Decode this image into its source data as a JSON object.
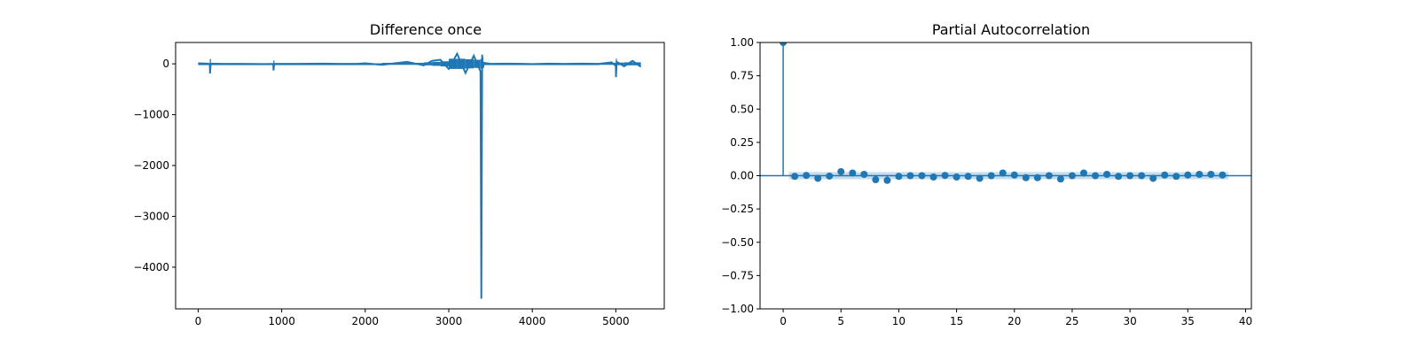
{
  "chart_data": [
    {
      "type": "line",
      "title": "Difference once",
      "xlabel": "",
      "ylabel": "",
      "xlim": [
        -270,
        5580
      ],
      "ylim": [
        -4820,
        420
      ],
      "xticks": [
        0,
        1000,
        2000,
        3000,
        4000,
        5000
      ],
      "xtick_labels": [
        "0",
        "1000",
        "2000",
        "3000",
        "4000",
        "5000"
      ],
      "yticks": [
        0,
        -1000,
        -2000,
        -3000,
        -4000
      ],
      "ytick_labels": [
        "0",
        "−1000",
        "−2000",
        "−3000",
        "−4000"
      ],
      "grid": false,
      "series_color": "#1f77b4",
      "series": [
        {
          "x": [
            0,
            100,
            140,
            142,
            150,
            300,
            500,
            800,
            900,
            902,
            910,
            1200,
            1500,
            1700,
            1900,
            2000,
            2200,
            2500,
            2700,
            2800,
            2900,
            3000,
            3100,
            3200,
            3300,
            3380,
            3390,
            3400,
            3410,
            3420,
            3500,
            3700,
            3900,
            4000,
            4200,
            4400,
            4600,
            4800,
            4950,
            5000,
            5002,
            5010,
            5100,
            5200,
            5300
          ],
          "y": [
            10,
            5,
            0,
            -190,
            5,
            0,
            0,
            -5,
            0,
            -130,
            0,
            0,
            5,
            0,
            0,
            10,
            -20,
            40,
            -30,
            60,
            80,
            -100,
            200,
            -180,
            160,
            -150,
            -4620,
            180,
            -80,
            20,
            0,
            5,
            0,
            -5,
            5,
            0,
            5,
            0,
            30,
            -40,
            -260,
            40,
            -50,
            60,
            -60
          ]
        }
      ]
    },
    {
      "type": "scatter",
      "subtype": "stem",
      "title": "Partial Autocorrelation",
      "xlabel": "",
      "ylabel": "",
      "xlim": [
        -2,
        40.5
      ],
      "ylim": [
        -1.0,
        1.0
      ],
      "xticks": [
        0,
        5,
        10,
        15,
        20,
        25,
        30,
        35,
        40
      ],
      "xtick_labels": [
        "0",
        "5",
        "10",
        "15",
        "20",
        "25",
        "30",
        "35",
        "40"
      ],
      "yticks": [
        1.0,
        0.75,
        0.5,
        0.25,
        0.0,
        -0.25,
        -0.5,
        -0.75,
        -1.0
      ],
      "ytick_labels": [
        "1.00",
        "0.75",
        "0.50",
        "0.25",
        "0.00",
        "−0.25",
        "−0.50",
        "−0.75",
        "−1.00"
      ],
      "grid": false,
      "confidence_band": 0.027,
      "series_color": "#1f77b4",
      "series": [
        {
          "x": [
            0,
            1,
            2,
            3,
            4,
            5,
            6,
            7,
            8,
            9,
            10,
            11,
            12,
            13,
            14,
            15,
            16,
            17,
            18,
            19,
            20,
            21,
            22,
            23,
            24,
            25,
            26,
            27,
            28,
            29,
            30,
            31,
            32,
            33,
            34,
            35,
            36,
            37,
            38
          ],
          "y": [
            1.0,
            -0.005,
            0.002,
            -0.02,
            -0.003,
            0.03,
            0.02,
            0.01,
            -0.03,
            -0.035,
            -0.005,
            0.0,
            0.0,
            -0.01,
            0.002,
            -0.01,
            -0.005,
            -0.02,
            0.0,
            0.02,
            0.005,
            -0.015,
            -0.015,
            0.0,
            -0.025,
            0.0,
            0.02,
            0.0,
            0.01,
            -0.005,
            0.0,
            0.0,
            -0.02,
            0.005,
            -0.005,
            0.005,
            0.01,
            0.01,
            0.005
          ]
        }
      ]
    }
  ]
}
